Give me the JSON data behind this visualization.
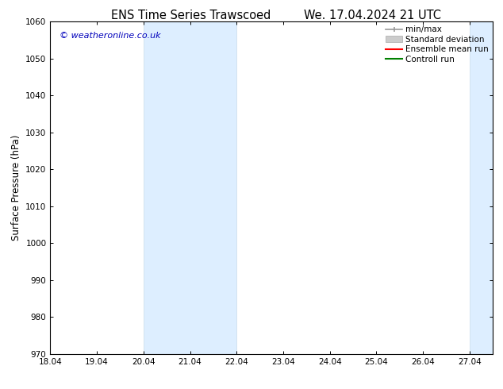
{
  "title_left": "ENS Time Series Trawscoed",
  "title_right": "We. 17.04.2024 21 UTC",
  "ylabel": "Surface Pressure (hPa)",
  "ylim": [
    970,
    1060
  ],
  "yticks": [
    970,
    980,
    990,
    1000,
    1010,
    1020,
    1030,
    1040,
    1050,
    1060
  ],
  "xtick_labels": [
    "18.04",
    "19.04",
    "20.04",
    "21.04",
    "22.04",
    "23.04",
    "24.04",
    "25.04",
    "26.04",
    "27.04"
  ],
  "xlim_start": 18.04,
  "xlim_end": 27.54,
  "shaded_regions": [
    {
      "xstart": 20.04,
      "xend": 22.04
    },
    {
      "xstart": 27.04,
      "xend": 27.54
    }
  ],
  "shaded_color": "#ddeeff",
  "shaded_edge_color": "#c8dcea",
  "watermark_text": "© weatheronline.co.uk",
  "watermark_color": "#0000bb",
  "bg_color": "#ffffff",
  "spine_color": "#000000",
  "title_fontsize": 10.5,
  "tick_fontsize": 7.5,
  "ylabel_fontsize": 8.5,
  "legend_fontsize": 7.5
}
